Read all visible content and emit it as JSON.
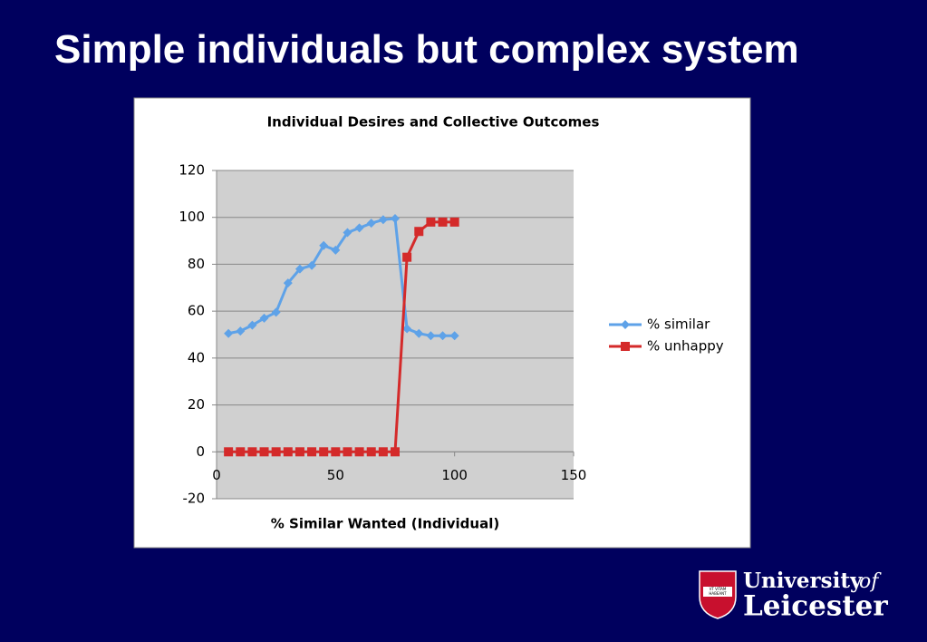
{
  "slide": {
    "title": "Simple individuals but complex system",
    "logo": {
      "words": [
        "University",
        "of",
        "Leicester"
      ],
      "motto": [
        "VT VITAM",
        "HABEANT"
      ]
    }
  },
  "chart_data": {
    "type": "line",
    "title": "Individual Desires and Collective Outcomes",
    "x_label": "% Similar Wanted (Individual)",
    "x": [
      5,
      10,
      15,
      20,
      25,
      30,
      35,
      40,
      45,
      50,
      55,
      60,
      65,
      70,
      75,
      80,
      85,
      90,
      95,
      100
    ],
    "series": [
      {
        "name": "% similar",
        "color": "#5ea2e8",
        "marker": "diamond",
        "values": [
          50.5,
          51.5,
          54,
          57,
          59.5,
          72,
          78,
          79.5,
          88,
          86,
          93.5,
          95.5,
          97.5,
          99,
          99.5,
          52.5,
          50.5,
          49.5,
          49.5,
          49.5
        ]
      },
      {
        "name": "% unhappy",
        "color": "#d42a2a",
        "marker": "square",
        "values": [
          0,
          0,
          0,
          0,
          0,
          0,
          0,
          0,
          0,
          0,
          0,
          0,
          0,
          0,
          0,
          83,
          94,
          98,
          98,
          98
        ]
      }
    ],
    "xlim": [
      0,
      150
    ],
    "xticks": [
      0,
      50,
      100,
      150
    ],
    "ylim": [
      -20,
      120
    ],
    "yticks": [
      -20,
      0,
      20,
      40,
      60,
      80,
      100,
      120
    ],
    "grid": true,
    "legend": "right"
  }
}
